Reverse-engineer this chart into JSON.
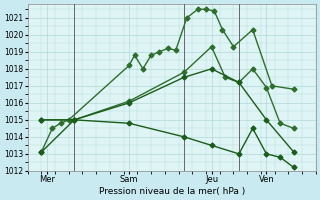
{
  "background_color": "#c8eaf0",
  "grid_color": "#b0d8d8",
  "plot_bg": "#dff5f5",
  "ylim": [
    1012,
    1021.8
  ],
  "yticks": [
    1012,
    1013,
    1014,
    1015,
    1016,
    1017,
    1018,
    1019,
    1020,
    1021
  ],
  "xlabel": "Pression niveau de la mer( hPa )",
  "day_labels": [
    "Mer",
    "Sam",
    "Jeu",
    "Ven"
  ],
  "day_positions": [
    0.5,
    3.5,
    6.5,
    8.5
  ],
  "vline_positions": [
    1.5,
    5.5,
    7.5
  ],
  "xlim": [
    -0.2,
    10.2
  ],
  "series": [
    {
      "x": [
        0.3,
        0.7,
        1.0,
        1.3,
        3.5,
        3.7,
        4.0,
        4.3,
        4.6,
        4.9,
        5.2,
        5.6,
        6.0,
        6.3,
        6.6,
        6.9,
        7.3,
        8.0,
        8.7,
        9.5
      ],
      "y": [
        1013.1,
        1014.5,
        1014.8,
        1015.0,
        1018.2,
        1018.8,
        1018.0,
        1018.8,
        1019.0,
        1019.2,
        1019.1,
        1021.0,
        1021.5,
        1021.5,
        1021.4,
        1020.3,
        1019.3,
        1020.3,
        1017.0,
        1016.8
      ],
      "color": "#2d6e2d",
      "lw": 1.0,
      "marker": "D",
      "ms": 2.5,
      "dashed": false
    },
    {
      "x": [
        0.3,
        1.5,
        3.5,
        5.5,
        6.5,
        7.0,
        7.5,
        8.0,
        8.5,
        9.0,
        9.5
      ],
      "y": [
        1015.0,
        1015.0,
        1016.1,
        1017.8,
        1019.3,
        1017.5,
        1017.2,
        1018.0,
        1016.9,
        1014.8,
        1014.5
      ],
      "color": "#2d6e2d",
      "lw": 1.0,
      "marker": "D",
      "ms": 2.5,
      "dashed": false
    },
    {
      "x": [
        0.3,
        1.5,
        3.5,
        5.5,
        6.5,
        7.5,
        8.5,
        9.5
      ],
      "y": [
        1015.0,
        1015.0,
        1016.0,
        1017.5,
        1018.0,
        1017.2,
        1015.0,
        1013.1
      ],
      "color": "#1a5c1a",
      "lw": 1.0,
      "marker": "D",
      "ms": 2.5,
      "dashed": false
    },
    {
      "x": [
        0.3,
        1.5,
        3.5,
        5.5,
        6.5,
        7.5,
        8.0,
        8.5,
        9.0,
        9.5
      ],
      "y": [
        1013.1,
        1015.0,
        1014.8,
        1014.0,
        1013.5,
        1013.0,
        1014.5,
        1013.0,
        1012.8,
        1012.2
      ],
      "color": "#1a5c1a",
      "lw": 1.0,
      "marker": "D",
      "ms": 2.5,
      "dashed": false
    }
  ]
}
